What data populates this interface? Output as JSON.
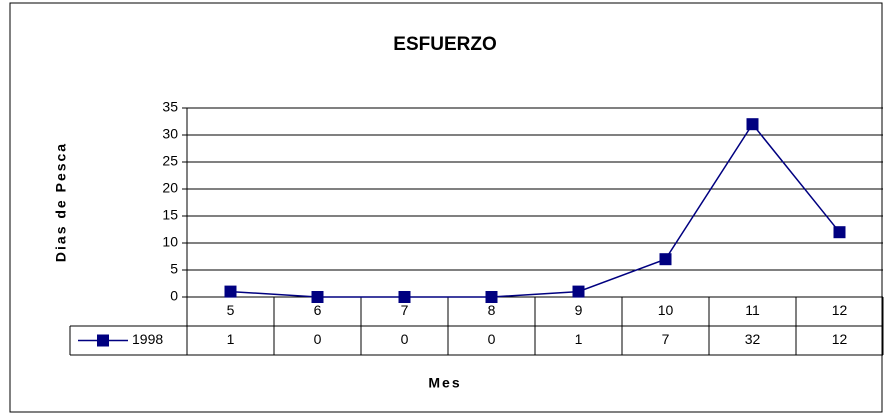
{
  "chart_data": {
    "type": "line",
    "title": "ESFUERZO",
    "y_label": "Dias de Pesca",
    "x_label": "Mes",
    "categories": [
      "5",
      "6",
      "7",
      "8",
      "9",
      "10",
      "11",
      "12"
    ],
    "series": [
      {
        "name": "1998",
        "color": "#000080",
        "values": [
          1,
          0,
          0,
          0,
          1,
          7,
          32,
          12
        ]
      }
    ],
    "ylim": [
      0,
      35
    ],
    "yticks": [
      0,
      5,
      10,
      15,
      20,
      25,
      30,
      35
    ],
    "grid": true,
    "data_table": true
  }
}
